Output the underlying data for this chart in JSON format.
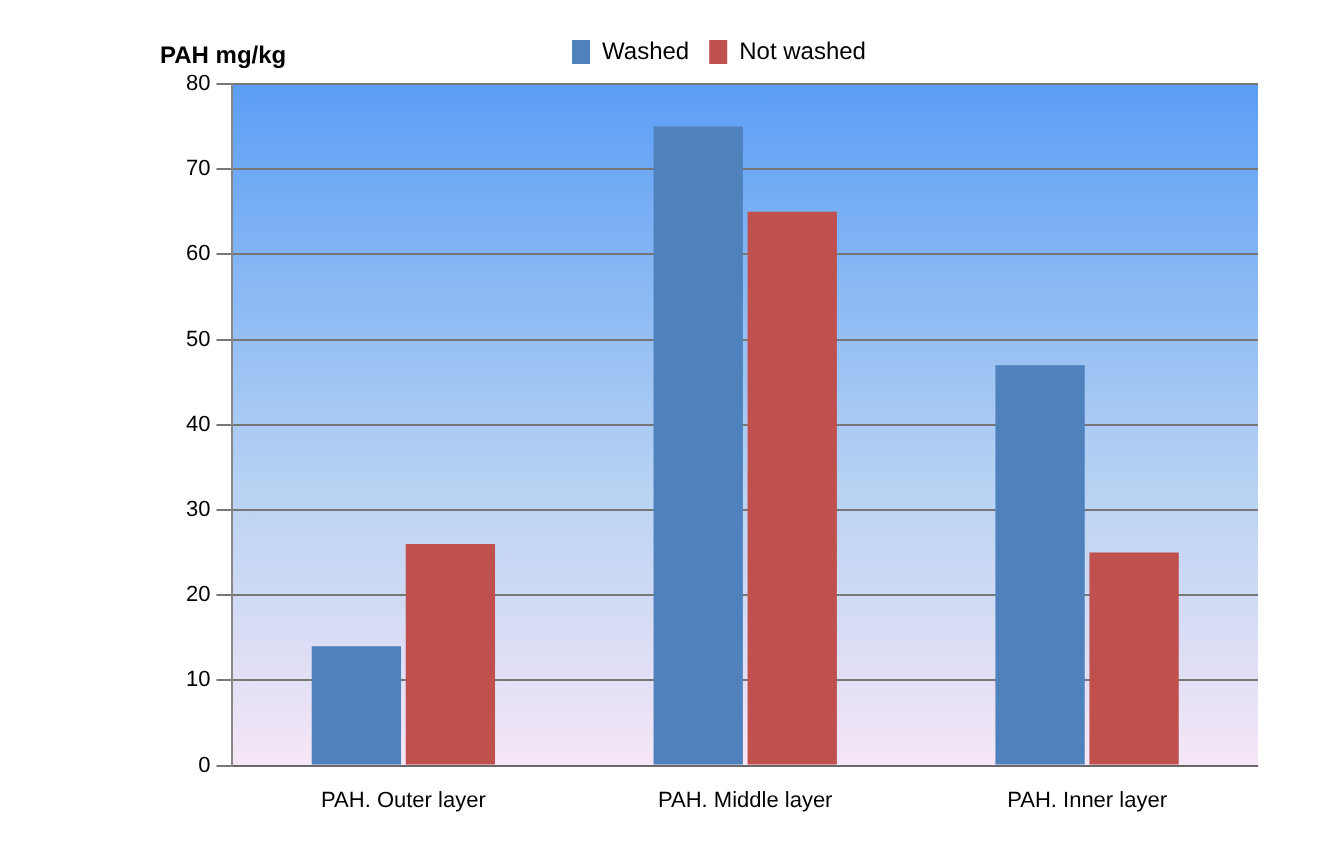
{
  "chart_data": {
    "type": "bar",
    "ylabel": "PAH mg/kg",
    "categories": [
      "PAH. Outer layer",
      "PAH. Middle layer",
      "PAH. Inner layer"
    ],
    "series": [
      {
        "name": "Washed",
        "color": "#4f81bd",
        "values": [
          14,
          75,
          47
        ]
      },
      {
        "name": "Not washed",
        "color": "#c0504d",
        "values": [
          26,
          65,
          25
        ]
      }
    ],
    "ylim": [
      0,
      80
    ],
    "yticks": [
      0,
      10,
      20,
      30,
      40,
      50,
      60,
      70,
      80
    ],
    "grid": "y",
    "legend": "top"
  }
}
